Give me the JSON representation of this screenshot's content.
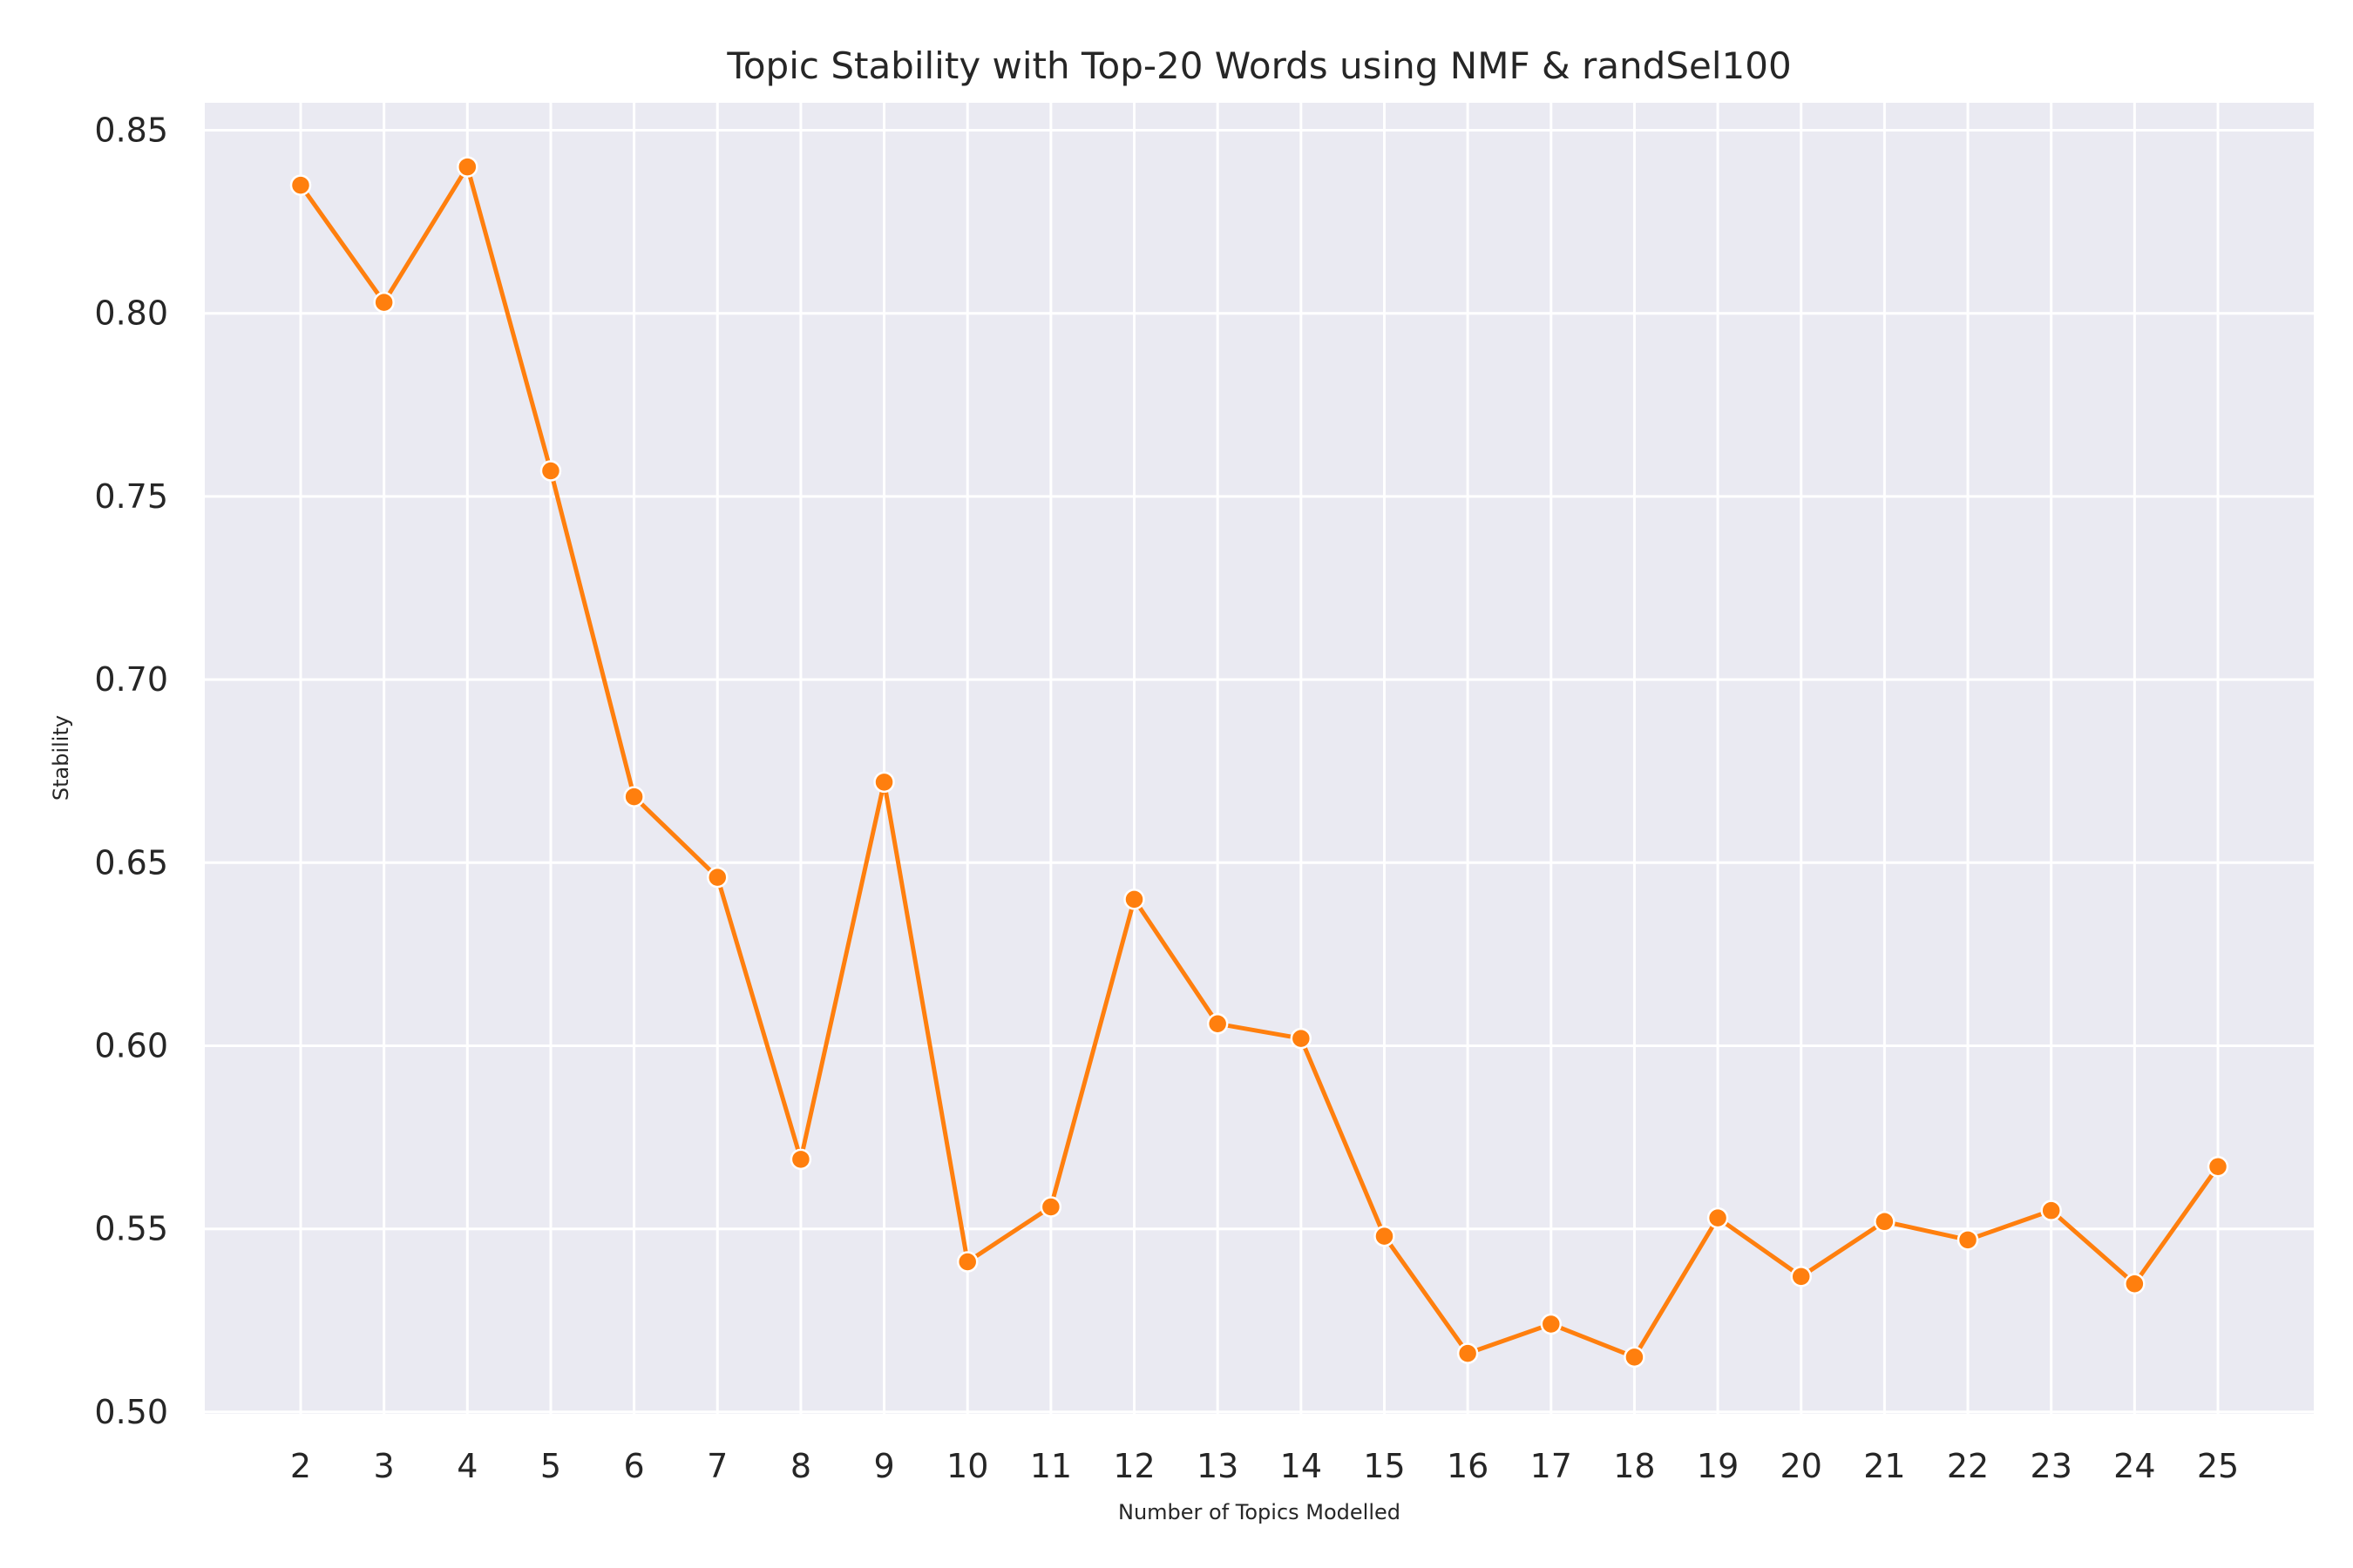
{
  "chart_data": {
    "type": "line",
    "title": "Topic Stability with Top-20 Words using NMF & randSel100",
    "xlabel": "Number of Topics Modelled",
    "ylabel": "Stability",
    "x": [
      2,
      3,
      4,
      5,
      6,
      7,
      8,
      9,
      10,
      11,
      12,
      13,
      14,
      15,
      16,
      17,
      18,
      19,
      20,
      21,
      22,
      23,
      24,
      25
    ],
    "series": [
      {
        "values": [
          0.835,
          0.803,
          0.84,
          0.757,
          0.668,
          0.646,
          0.569,
          0.672,
          0.541,
          0.556,
          0.64,
          0.606,
          0.602,
          0.548,
          0.516,
          0.524,
          0.515,
          0.553,
          0.537,
          0.552,
          0.547,
          0.555,
          0.535,
          0.567
        ],
        "color": "#ff7f0e"
      }
    ],
    "xticks": [
      "2",
      "3",
      "4",
      "5",
      "6",
      "7",
      "8",
      "9",
      "10",
      "11",
      "12",
      "13",
      "14",
      "15",
      "16",
      "17",
      "18",
      "19",
      "20",
      "21",
      "22",
      "23",
      "24",
      "25"
    ],
    "yticks": [
      "0.50",
      "0.55",
      "0.60",
      "0.65",
      "0.70",
      "0.75",
      "0.80",
      "0.85"
    ],
    "ytick_values": [
      0.5,
      0.55,
      0.6,
      0.65,
      0.7,
      0.75,
      0.8,
      0.85
    ],
    "xlim": [
      0.85,
      26.15
    ],
    "ylim": [
      0.4995,
      0.8575
    ],
    "grid": true,
    "background": "#eaeaf2",
    "grid_color": "#ffffff"
  }
}
